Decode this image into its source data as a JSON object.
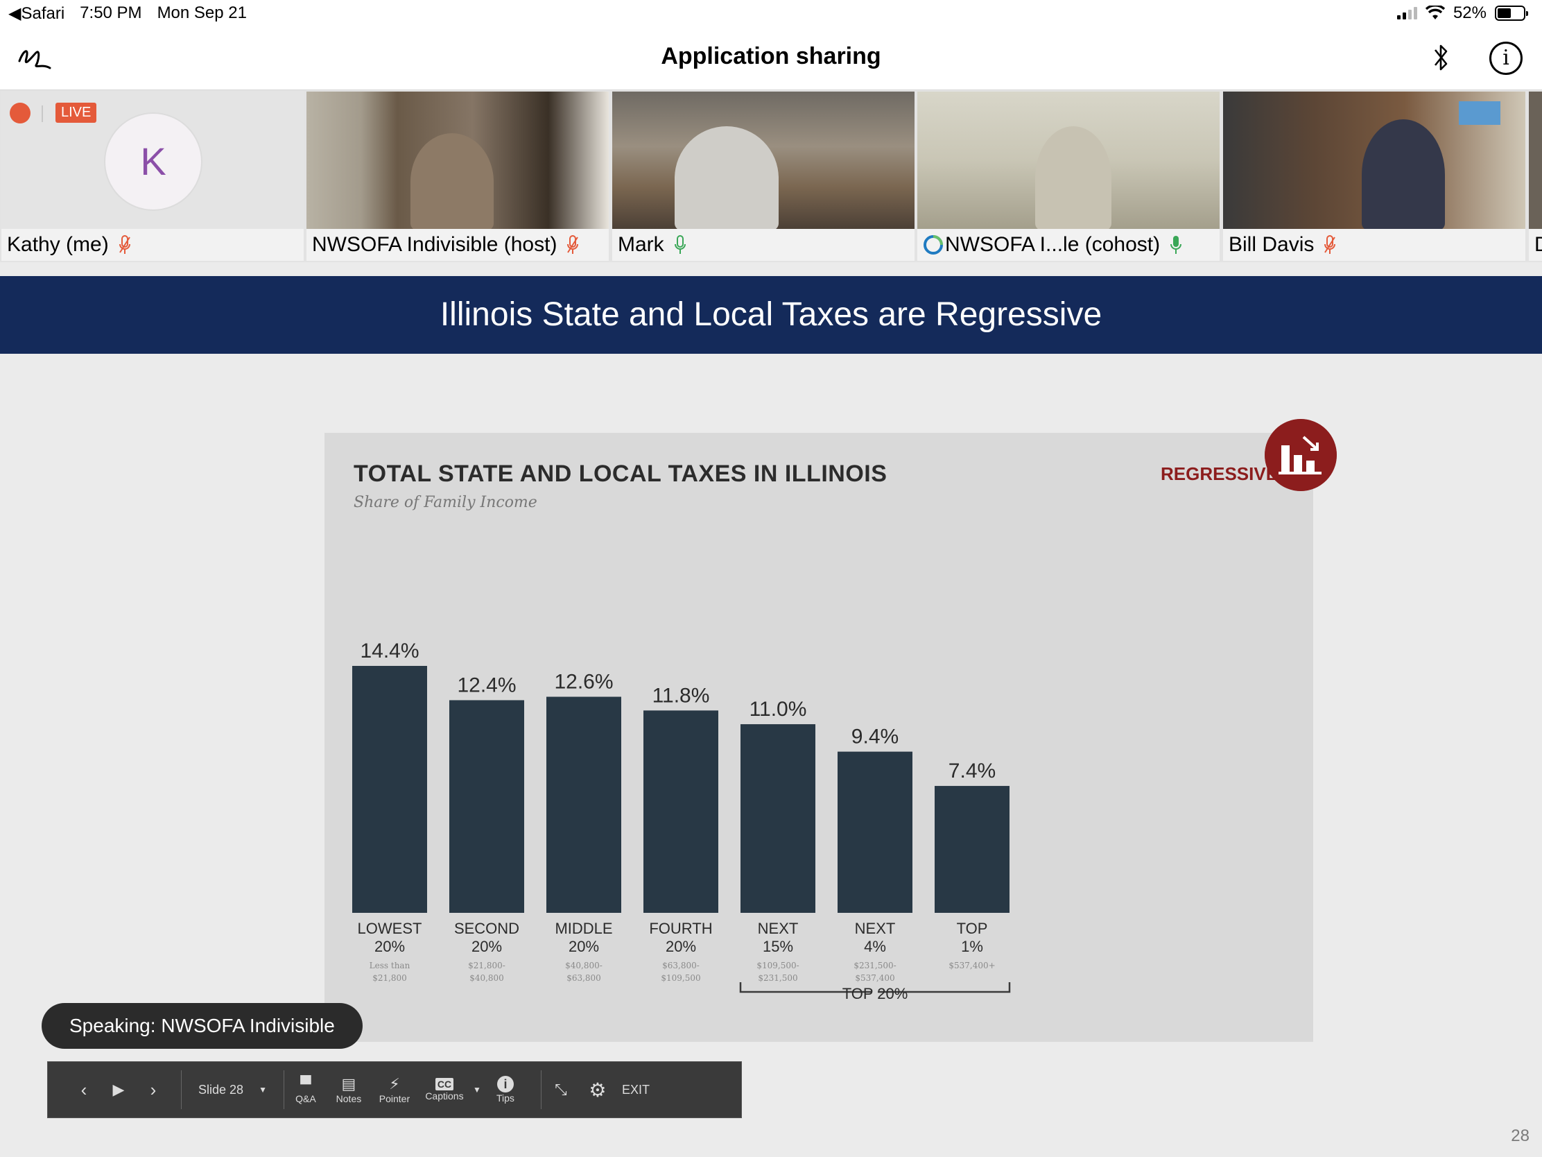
{
  "status_bar": {
    "back_app": "Safari",
    "time": "7:50 PM",
    "date": "Mon Sep 21",
    "battery": "52%",
    "battery_level": 0.52
  },
  "title_bar": {
    "title": "Application sharing"
  },
  "participants": [
    {
      "name": "Kathy (me)",
      "initial": "K",
      "live_badge": "LIVE",
      "mic": "muted"
    },
    {
      "name": "NWSOFA Indivisible (host)",
      "mic": "muted"
    },
    {
      "name": "Mark",
      "mic": "active"
    },
    {
      "name": "NWSOFA I...le (cohost)",
      "mic": "active"
    },
    {
      "name": "Bill Davis",
      "mic": "muted"
    },
    {
      "name": "D",
      "mic": ""
    }
  ],
  "slide": {
    "header": "Illinois State and Local Taxes are Regressive",
    "regressive_label": "REGRESSIVE",
    "page_number": "28"
  },
  "chart_data": {
    "type": "bar",
    "title": "TOTAL STATE AND LOCAL TAXES IN ILLINOIS",
    "subtitle": "Share of Family Income",
    "categories": [
      "LOWEST 20%",
      "SECOND 20%",
      "MIDDLE 20%",
      "FOURTH 20%",
      "NEXT 15%",
      "NEXT 4%",
      "TOP 1%"
    ],
    "category_lines": [
      [
        "LOWEST",
        "20%"
      ],
      [
        "SECOND",
        "20%"
      ],
      [
        "MIDDLE",
        "20%"
      ],
      [
        "FOURTH",
        "20%"
      ],
      [
        "NEXT",
        "15%"
      ],
      [
        "NEXT",
        "4%"
      ],
      [
        "TOP",
        "1%"
      ]
    ],
    "income_ranges": [
      [
        "Less than",
        "$21,800"
      ],
      [
        "$21,800-",
        "$40,800"
      ],
      [
        "$40,800-",
        "$63,800"
      ],
      [
        "$63,800-",
        "$109,500"
      ],
      [
        "$109,500-",
        "$231,500"
      ],
      [
        "$231,500-",
        "$537,400"
      ],
      [
        "$537,400+",
        ""
      ]
    ],
    "values": [
      14.4,
      12.4,
      12.6,
      11.8,
      11.0,
      9.4,
      7.4
    ],
    "value_labels": [
      "14.4%",
      "12.4%",
      "12.6%",
      "11.8%",
      "11.0%",
      "9.4%",
      "7.4%"
    ],
    "ylim": [
      0,
      14.4
    ],
    "bracket_label": "TOP 20%",
    "bar_color": "#283845"
  },
  "speaking": "Speaking: NWSOFA Indivisible",
  "toolbar": {
    "slide_label": "Slide 28",
    "qa": "Q&A",
    "notes": "Notes",
    "pointer": "Pointer",
    "captions": "Captions",
    "tips": "Tips",
    "exit": "EXIT"
  },
  "colors": {
    "slide_header_bg": "#142a5a",
    "regressive_red": "#8c1d1d",
    "muted_red": "#e45a3a",
    "mic_green": "#3aa757"
  }
}
